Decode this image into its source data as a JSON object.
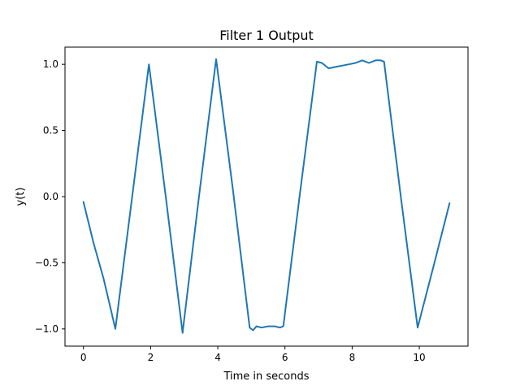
{
  "chart_data": {
    "type": "line",
    "title": "Filter 1 Output",
    "xlabel": "Time in seconds",
    "ylabel": "y(t)",
    "xlim": [
      -0.55,
      11.45
    ],
    "ylim": [
      -1.13,
      1.13
    ],
    "xticks": [
      0,
      2,
      4,
      6,
      8,
      10
    ],
    "xtick_labels": [
      "0",
      "2",
      "4",
      "6",
      "8",
      "10"
    ],
    "yticks": [
      -1.0,
      -0.5,
      0.0,
      0.5,
      1.0
    ],
    "ytick_labels": [
      "−1.0",
      "−0.5",
      "0.0",
      "0.5",
      "1.0"
    ],
    "grid": false,
    "line_color": "#1f77b4",
    "series": [
      {
        "x": [
          0.0,
          0.3,
          0.6,
          0.95,
          1.45,
          1.95,
          2.45,
          2.95,
          3.45,
          3.95,
          4.45,
          4.95,
          5.05,
          5.15,
          5.3,
          5.5,
          5.7,
          5.85,
          5.95,
          6.45,
          6.95,
          7.1,
          7.3,
          7.5,
          7.7,
          7.9,
          8.1,
          8.3,
          8.5,
          8.7,
          8.85,
          8.95,
          9.45,
          9.95,
          10.45,
          10.9
        ],
        "y": [
          -0.04,
          -0.35,
          -0.62,
          -1.0,
          0.0,
          1.0,
          0.0,
          -1.03,
          0.02,
          1.04,
          0.05,
          -0.99,
          -1.01,
          -0.98,
          -0.99,
          -0.98,
          -0.98,
          -0.99,
          -0.98,
          0.03,
          1.02,
          1.01,
          0.97,
          0.98,
          0.99,
          1.0,
          1.01,
          1.03,
          1.01,
          1.03,
          1.03,
          1.02,
          0.0,
          -0.99,
          -0.5,
          -0.05
        ]
      }
    ]
  }
}
